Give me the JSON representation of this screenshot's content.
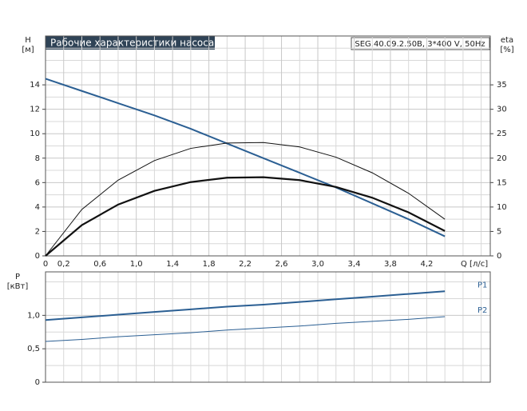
{
  "chart_data": [
    {
      "type": "line",
      "title": "Рабочие характеристики насоса",
      "model": "SEG.40.09.2.50B, 3*400 V, 50Hz",
      "y_label": "H",
      "y_unit": "[м]",
      "y2_label": "eta",
      "y2_unit": "[%]",
      "x_label": "Q [л/с]",
      "x": [
        0,
        0.4,
        0.8,
        1.2,
        1.6,
        2.0,
        2.4,
        2.8,
        3.2,
        3.6,
        4.0,
        4.4
      ],
      "xlim": [
        0,
        4.9
      ],
      "xticks": [
        0,
        {
          "value": 0.2,
          "label": "0,2"
        },
        {
          "value": 0.6,
          "label": "0,6"
        },
        {
          "value": 1.0,
          "label": "1,0"
        },
        {
          "value": 1.4,
          "label": "1,4"
        },
        {
          "value": 1.8,
          "label": "1,8"
        },
        {
          "value": 2.2,
          "label": "2,2"
        },
        {
          "value": 2.6,
          "label": "2,6"
        },
        {
          "value": 3.0,
          "label": "3,0"
        },
        {
          "value": 3.4,
          "label": "3,4"
        },
        {
          "value": 3.8,
          "label": "3,8"
        },
        {
          "value": 4.2,
          "label": "4,2"
        }
      ],
      "xminor": [
        0.4,
        0.8,
        1.2,
        1.6,
        2.0,
        2.4,
        2.8,
        3.2,
        3.6,
        4.0,
        4.4,
        4.6,
        4.8
      ],
      "ylim": [
        0,
        18
      ],
      "yticks": [
        0,
        2,
        4,
        6,
        8,
        10,
        12,
        14
      ],
      "yminor": [
        1,
        3,
        5,
        7,
        9,
        11,
        13,
        15,
        16,
        17
      ],
      "y2lim": [
        0,
        45
      ],
      "y2ticks": [
        0,
        5,
        10,
        15,
        20,
        25,
        30,
        35
      ],
      "grid": true,
      "series": [
        {
          "color": "#2b5f93",
          "line_width": 2,
          "values": [
            14.5,
            13.5,
            12.5,
            11.5,
            10.4,
            9.2,
            8.0,
            6.8,
            5.6,
            4.3,
            3.0,
            1.6
          ]
        },
        {
          "color": "#111111",
          "line_width": 1,
          "axis": "y2",
          "values": [
            0,
            9.5,
            15.5,
            19.5,
            22,
            23.1,
            23.2,
            22.3,
            20.2,
            17,
            12.8,
            7.5
          ]
        },
        {
          "color": "#111111",
          "line_width": 2.2,
          "axis": "y2",
          "values": [
            0,
            6.3,
            10.5,
            13.3,
            15.1,
            16.0,
            16.1,
            15.5,
            14.1,
            11.9,
            8.9,
            5.1
          ]
        }
      ]
    },
    {
      "type": "line",
      "y_label": "P",
      "y_unit": "[кВт]",
      "x": [
        0,
        0.4,
        0.8,
        1.2,
        1.6,
        2.0,
        2.4,
        2.8,
        3.2,
        3.6,
        4.0,
        4.4
      ],
      "xlim": [
        0,
        4.9
      ],
      "xminor": [
        0.2,
        0.4,
        0.6,
        0.8,
        1.0,
        1.2,
        1.4,
        1.6,
        1.8,
        2.0,
        2.2,
        2.4,
        2.6,
        2.8,
        3.0,
        3.2,
        3.4,
        3.6,
        3.8,
        4.0,
        4.2,
        4.4,
        4.6,
        4.8
      ],
      "ylim": [
        0,
        1.65
      ],
      "yticks": [
        0,
        {
          "value": 0.5,
          "label": "0,5"
        },
        {
          "value": 1.0,
          "label": "1,0"
        }
      ],
      "yminor": [
        0.25,
        0.75,
        1.25,
        1.5
      ],
      "grid": true,
      "series": [
        {
          "name": "P1",
          "color": "#2b5f93",
          "line_width": 2,
          "values": [
            0.93,
            0.97,
            1.01,
            1.05,
            1.09,
            1.13,
            1.16,
            1.2,
            1.24,
            1.28,
            1.32,
            1.36
          ]
        },
        {
          "name": "P2",
          "color": "#2b5f93",
          "line_width": 1,
          "values": [
            0.61,
            0.64,
            0.68,
            0.71,
            0.74,
            0.78,
            0.81,
            0.84,
            0.88,
            0.91,
            0.94,
            0.98
          ]
        }
      ]
    }
  ]
}
